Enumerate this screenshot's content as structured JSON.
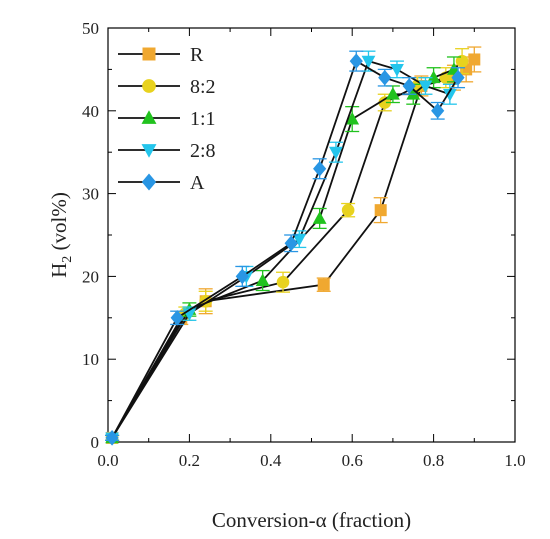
{
  "chart_data": {
    "type": "line",
    "title": "",
    "xlabel": "Conversion-α (fraction)",
    "ylabel_main": "H",
    "ylabel_sub": "2",
    "ylabel_tail": " (vol%)",
    "xlim": [
      0.0,
      1.0
    ],
    "ylim": [
      0,
      50
    ],
    "xticks": [
      "0.0",
      "0.2",
      "0.4",
      "0.6",
      "0.8",
      "1.0"
    ],
    "yticks": [
      "0",
      "10",
      "20",
      "30",
      "40",
      "50"
    ],
    "legend_position": "top-left",
    "grid": false,
    "series": [
      {
        "name": "R",
        "color": "#f0a830",
        "marker": "square",
        "x": [
          0.01,
          0.18,
          0.24,
          0.53,
          0.67,
          0.77,
          0.85,
          0.88,
          0.9
        ],
        "y": [
          0.5,
          15,
          17,
          19,
          28,
          43,
          44,
          45,
          46.2
        ],
        "err": [
          0.3,
          0.8,
          1.5,
          0.8,
          1.5,
          1.2,
          1.5,
          1.5,
          1.5
        ]
      },
      {
        "name": "8:2",
        "color": "#e8d21e",
        "marker": "circle",
        "x": [
          0.01,
          0.19,
          0.24,
          0.43,
          0.59,
          0.68,
          0.76,
          0.83,
          0.87
        ],
        "y": [
          0.5,
          15.5,
          17,
          19.3,
          28,
          41,
          43,
          44,
          46
        ],
        "err": [
          0.3,
          0.8,
          1.2,
          1.2,
          0.8,
          1.0,
          1.0,
          1.2,
          1.5
        ]
      },
      {
        "name": "1:1",
        "color": "#21c21e",
        "marker": "triangle-up",
        "x": [
          0.01,
          0.2,
          0.38,
          0.52,
          0.6,
          0.7,
          0.75,
          0.8,
          0.85
        ],
        "y": [
          0.5,
          16,
          19.5,
          27,
          39,
          42,
          42,
          44,
          45
        ],
        "err": [
          0.3,
          0.8,
          1.2,
          1.2,
          1.5,
          1.0,
          1.2,
          1.2,
          1.5
        ]
      },
      {
        "name": "2:8",
        "color": "#23c5ec",
        "marker": "triangle-down",
        "x": [
          0.01,
          0.2,
          0.34,
          0.47,
          0.56,
          0.64,
          0.71,
          0.78,
          0.84
        ],
        "y": [
          0.5,
          15.5,
          20,
          24.5,
          35,
          46,
          45,
          43,
          42
        ],
        "err": [
          0.3,
          0.8,
          1.2,
          1.0,
          1.2,
          1.2,
          1.0,
          1.0,
          1.2
        ]
      },
      {
        "name": "A",
        "color": "#2996e4",
        "marker": "diamond",
        "x": [
          0.01,
          0.17,
          0.33,
          0.45,
          0.52,
          0.61,
          0.68,
          0.74,
          0.81,
          0.86
        ],
        "y": [
          0.5,
          15,
          20,
          24,
          33,
          46,
          44,
          43,
          40,
          44
        ],
        "err": [
          0.3,
          0.8,
          1.2,
          1.0,
          1.2,
          1.2,
          1.0,
          1.0,
          1.0,
          1.2
        ]
      }
    ]
  }
}
